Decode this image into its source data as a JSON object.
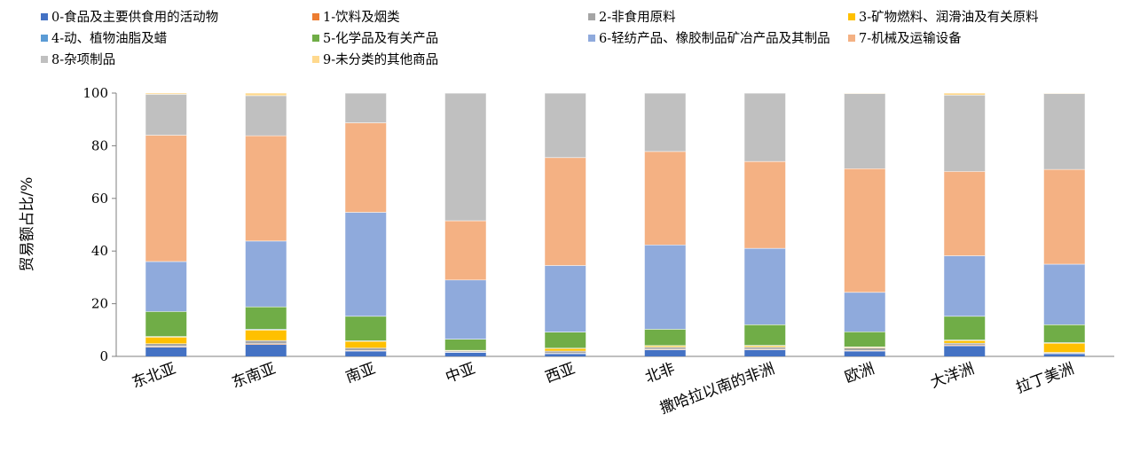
{
  "chart_data": {
    "type": "bar",
    "stacked": true,
    "title": "",
    "xlabel": "",
    "ylabel": "贸易额占比/%",
    "ylim": [
      0,
      100
    ],
    "yticks": [
      "0",
      "20",
      "40",
      "60",
      "80",
      "100"
    ],
    "grid": false,
    "legend_position": "top",
    "categories": [
      "东北亚",
      "东南亚",
      "南亚",
      "中亚",
      "西亚",
      "北非",
      "撒哈拉以南的非洲",
      "欧洲",
      "大洋洲",
      "拉丁美洲"
    ],
    "series": [
      {
        "name": "0-食品及主要供食用的活动物",
        "color": "#4472c4",
        "values": [
          3.5,
          4.5,
          2.0,
          1.5,
          1.0,
          2.5,
          2.5,
          2.0,
          4.0,
          1.0
        ]
      },
      {
        "name": "1-饮料及烟类",
        "color": "#ed7d31",
        "values": [
          0.3,
          0.3,
          0.2,
          0.1,
          0.1,
          0.2,
          0.2,
          0.2,
          0.3,
          0.1
        ]
      },
      {
        "name": "2-非食用原料",
        "color": "#a5a5a5",
        "values": [
          1.0,
          1.2,
          1.0,
          0.4,
          0.9,
          0.8,
          0.8,
          1.0,
          0.7,
          0.4
        ]
      },
      {
        "name": "3-矿物燃料、润滑油及有关原料",
        "color": "#ffc000",
        "values": [
          2.5,
          4.0,
          2.5,
          0.2,
          1.0,
          0.5,
          0.5,
          0.3,
          1.0,
          3.5
        ]
      },
      {
        "name": "4-动、植物油脂及蜡",
        "color": "#5b9bd5",
        "values": [
          0.2,
          0.3,
          0.2,
          0.1,
          0.1,
          0.1,
          0.2,
          0.1,
          0.2,
          0.2
        ]
      },
      {
        "name": "5-化学品及有关产品",
        "color": "#70ad47",
        "values": [
          9.5,
          8.5,
          9.3,
          4.2,
          6.1,
          6.2,
          7.8,
          5.7,
          9.0,
          6.8
        ]
      },
      {
        "name": "6-轻纺产品、橡胶制品矿冶产品及其制品",
        "color": "#8faadc",
        "values": [
          19.0,
          25.0,
          39.5,
          22.5,
          25.3,
          32.0,
          29.0,
          15.0,
          23.0,
          23.0
        ]
      },
      {
        "name": "7-机械及运输设备",
        "color": "#f4b183",
        "values": [
          48.0,
          40.0,
          34.0,
          22.5,
          41.0,
          35.5,
          33.0,
          47.0,
          32.0,
          36.0
        ]
      },
      {
        "name": "8-杂项制品",
        "color": "#c0c0c0",
        "values": [
          15.5,
          15.2,
          11.3,
          48.5,
          24.5,
          22.2,
          26.0,
          28.5,
          29.0,
          28.8
        ]
      },
      {
        "name": "9-未分类的其他商品",
        "color": "#ffd98e",
        "values": [
          0.5,
          1.0,
          0.0,
          0.0,
          0.0,
          0.0,
          0.0,
          0.2,
          0.8,
          0.2
        ]
      }
    ]
  }
}
